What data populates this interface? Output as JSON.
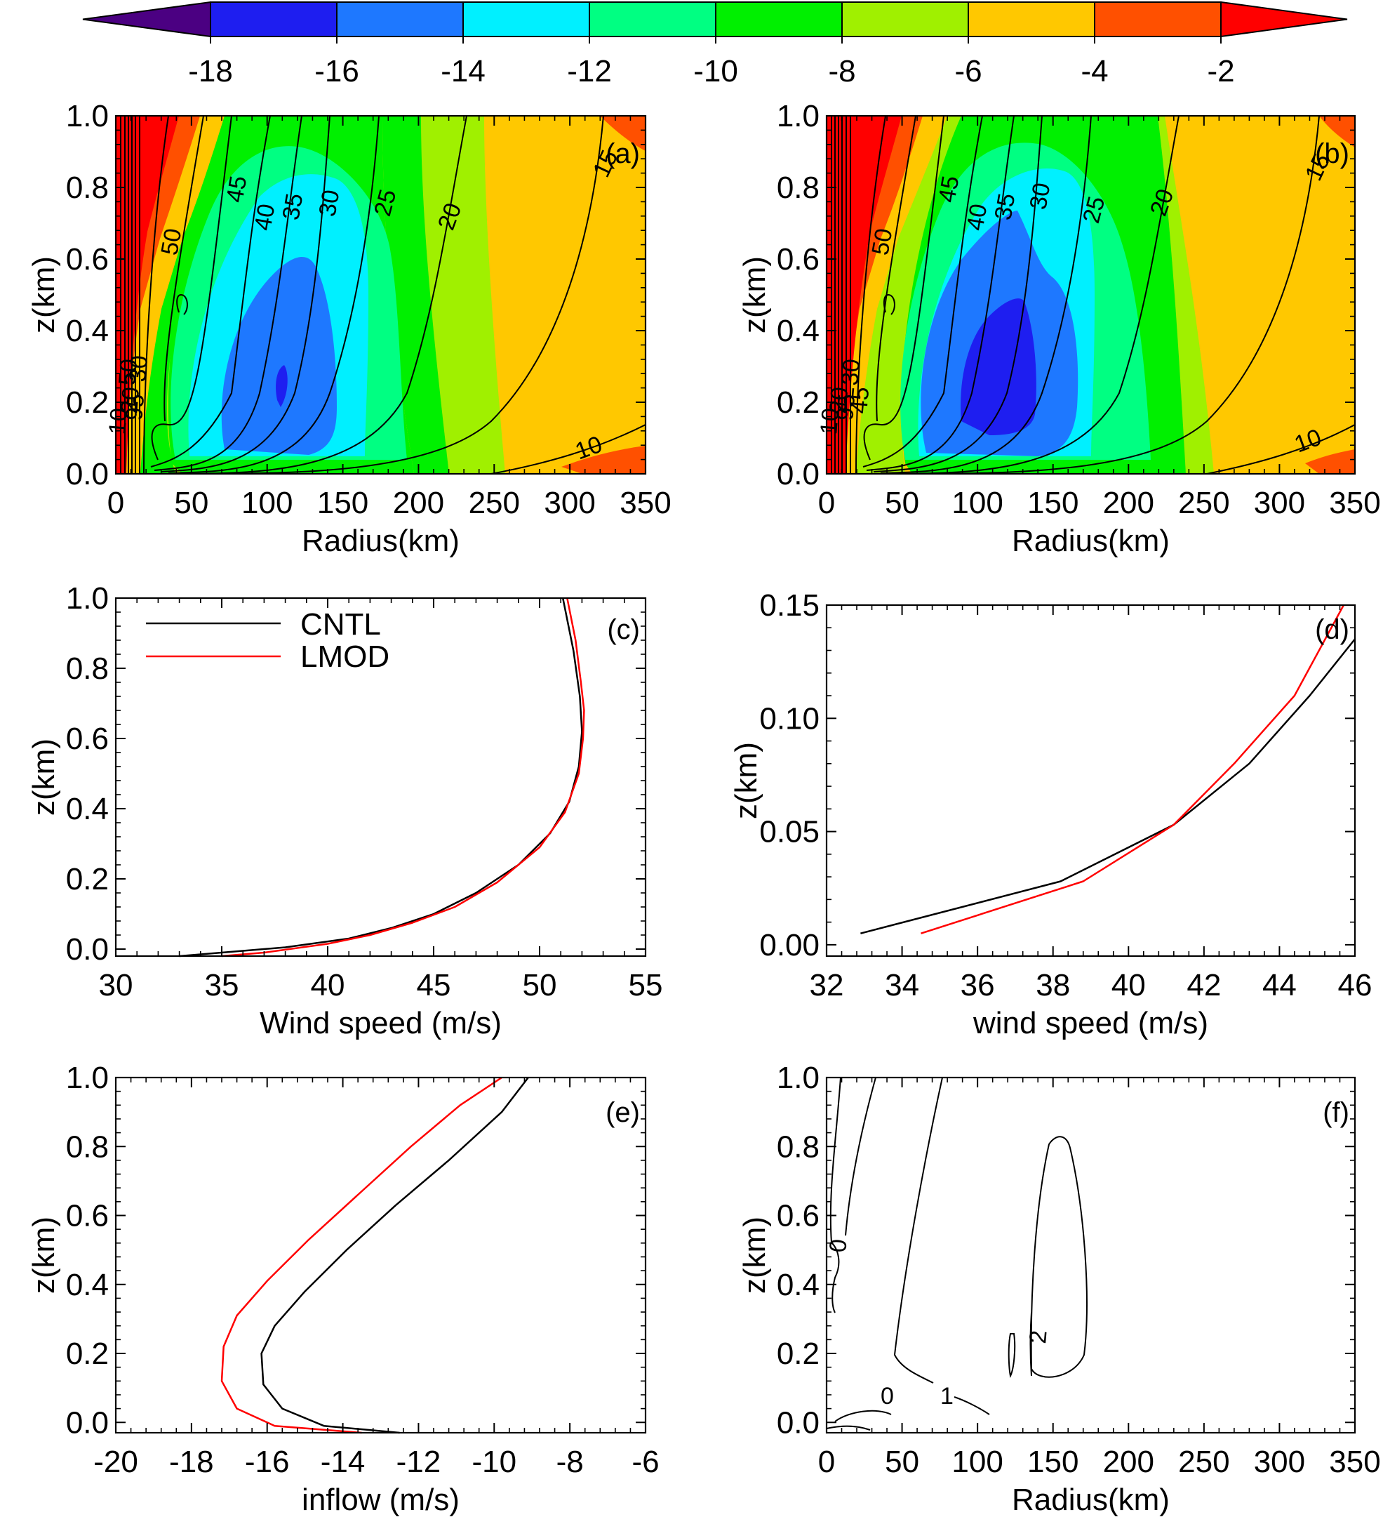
{
  "colorbar": {
    "ticks": [
      "-18",
      "-16",
      "-14",
      "-12",
      "-10",
      "-8",
      "-6",
      "-4",
      "-2"
    ],
    "colors": [
      "#4b0082",
      "#1e1ef0",
      "#1e78ff",
      "#00f0ff",
      "#00ff82",
      "#00f000",
      "#a0f000",
      "#ffc800",
      "#ff5000",
      "#ff0000"
    ]
  },
  "legend": {
    "cntl": "CNTL",
    "lmod": "LMOD",
    "cntl_color": "#000000",
    "lmod_color": "#ff0000"
  },
  "chart_data": [
    {
      "id": "a",
      "type": "contour",
      "panel_label": "(a)",
      "xlabel": "Radius(km)",
      "ylabel": "z(km)",
      "xlim": [
        0,
        350
      ],
      "ylim": [
        0,
        1.0
      ],
      "xticks": [
        "0",
        "50",
        "100",
        "150",
        "200",
        "250",
        "300",
        "350"
      ],
      "yticks": [
        "0.0",
        "0.2",
        "0.4",
        "0.6",
        "0.8",
        "1.0"
      ],
      "contour_labels": [
        "50",
        "45",
        "40",
        "35",
        "30",
        "25",
        "20",
        "15",
        "10",
        "10",
        "20",
        "30",
        "50",
        "95"
      ]
    },
    {
      "id": "b",
      "type": "contour",
      "panel_label": "(b)",
      "xlabel": "Radius(km)",
      "ylabel": "z(km)",
      "xlim": [
        0,
        350
      ],
      "ylim": [
        0,
        1.0
      ],
      "xticks": [
        "0",
        "50",
        "100",
        "150",
        "200",
        "250",
        "300",
        "350"
      ],
      "yticks": [
        "0.0",
        "0.2",
        "0.4",
        "0.6",
        "0.8",
        "1.0"
      ],
      "contour_labels": [
        "50",
        "45",
        "40",
        "35",
        "30",
        "25",
        "20",
        "15",
        "10",
        "10",
        "20",
        "30",
        "45",
        "95"
      ]
    },
    {
      "id": "c",
      "type": "line",
      "panel_label": "(c)",
      "xlabel": "Wind speed (m/s)",
      "ylabel": "z(km)",
      "xlim": [
        30,
        55
      ],
      "ylim": [
        -0.02,
        1.0
      ],
      "xticks": [
        "30",
        "35",
        "40",
        "45",
        "50",
        "55"
      ],
      "yticks": [
        "0.0",
        "0.2",
        "0.4",
        "0.6",
        "0.8",
        "1.0"
      ],
      "series": [
        {
          "name": "CNTL",
          "x": [
            33.0,
            35.0,
            38.0,
            41.0,
            43.0,
            45.0,
            47.0,
            49.0,
            50.5,
            51.4,
            51.85,
            52.0,
            51.9,
            51.6,
            51.1
          ],
          "y": [
            -0.02,
            -0.01,
            0.005,
            0.03,
            0.06,
            0.1,
            0.16,
            0.24,
            0.33,
            0.42,
            0.52,
            0.62,
            0.72,
            0.85,
            1.0
          ]
        },
        {
          "name": "LMOD",
          "x": [
            35.0,
            37.0,
            40.0,
            42.0,
            44.0,
            46.0,
            48.0,
            50.0,
            51.2,
            51.85,
            52.05,
            52.1,
            51.95,
            51.7,
            51.3
          ],
          "y": [
            -0.02,
            -0.01,
            0.015,
            0.04,
            0.075,
            0.12,
            0.19,
            0.29,
            0.39,
            0.5,
            0.6,
            0.68,
            0.76,
            0.88,
            1.0
          ]
        }
      ]
    },
    {
      "id": "d",
      "type": "line",
      "panel_label": "(d)",
      "xlabel": "wind speed (m/s)",
      "ylabel": "z(km)",
      "xlim": [
        32,
        46
      ],
      "ylim": [
        -0.005,
        0.15
      ],
      "xticks": [
        "32",
        "34",
        "36",
        "38",
        "40",
        "42",
        "44",
        "46"
      ],
      "yticks": [
        "0.00",
        "0.05",
        "0.10",
        "0.15"
      ],
      "series": [
        {
          "name": "CNTL",
          "x": [
            32.9,
            38.2,
            41.2,
            43.2,
            44.8,
            46.0
          ],
          "y": [
            0.005,
            0.028,
            0.053,
            0.08,
            0.11,
            0.135
          ]
        },
        {
          "name": "LMOD",
          "x": [
            34.5,
            38.8,
            41.2,
            42.8,
            44.4,
            45.7
          ],
          "y": [
            0.005,
            0.028,
            0.053,
            0.08,
            0.11,
            0.15
          ]
        }
      ]
    },
    {
      "id": "e",
      "type": "line",
      "panel_label": "(e)",
      "xlabel": "inflow (m/s)",
      "ylabel": "z(km)",
      "xlim": [
        -20,
        -6
      ],
      "ylim": [
        -0.03,
        1.0
      ],
      "xticks": [
        "-20",
        "-18",
        "-16",
        "-14",
        "-12",
        "-10",
        "-8",
        "-6"
      ],
      "yticks": [
        "0.0",
        "0.2",
        "0.4",
        "0.6",
        "0.8",
        "1.0"
      ],
      "series": [
        {
          "name": "CNTL",
          "x": [
            -12.5,
            -14.5,
            -15.6,
            -16.1,
            -16.15,
            -15.8,
            -15.0,
            -13.9,
            -12.6,
            -11.2,
            -9.8,
            -9.1
          ],
          "y": [
            -0.03,
            -0.01,
            0.04,
            0.11,
            0.2,
            0.28,
            0.38,
            0.5,
            0.63,
            0.76,
            0.9,
            1.0
          ]
        },
        {
          "name": "LMOD",
          "x": [
            -13.5,
            -15.8,
            -16.8,
            -17.2,
            -17.15,
            -16.8,
            -16.0,
            -14.9,
            -13.6,
            -12.2,
            -10.9,
            -9.8
          ],
          "y": [
            -0.03,
            -0.01,
            0.04,
            0.12,
            0.22,
            0.31,
            0.41,
            0.53,
            0.66,
            0.8,
            0.92,
            1.0
          ]
        }
      ]
    },
    {
      "id": "f",
      "type": "contour",
      "panel_label": "(f)",
      "xlabel": "Radius(km)",
      "ylabel": "z(km)",
      "xlim": [
        0,
        350
      ],
      "ylim": [
        -0.03,
        1.0
      ],
      "xticks": [
        "0",
        "50",
        "100",
        "150",
        "200",
        "250",
        "300",
        "350"
      ],
      "yticks": [
        "0.0",
        "0.2",
        "0.4",
        "0.6",
        "0.8",
        "1.0"
      ],
      "contour_labels": [
        "0",
        "0",
        "1",
        "2"
      ]
    }
  ]
}
